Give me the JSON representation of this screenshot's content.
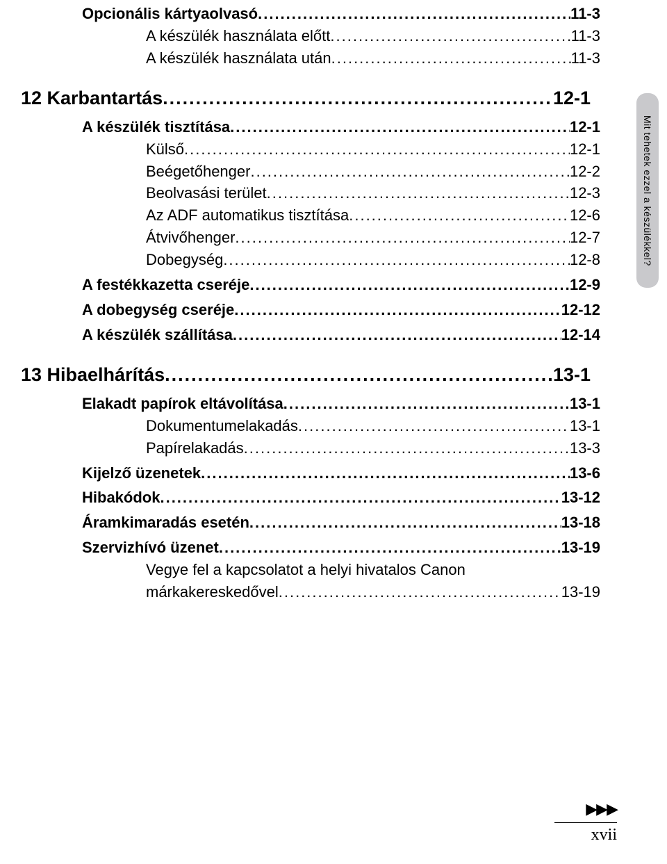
{
  "sideTab": "Mit tehetek ezzel a készülékkel?",
  "pageNumber": "xvii",
  "toc": [
    {
      "level": 2,
      "title": "Opcionális kártyaolvasó",
      "page": "11-3"
    },
    {
      "level": 3,
      "title": "A készülék használata előtt",
      "page": "11-3"
    },
    {
      "level": 3,
      "title": "A készülék használata után",
      "page": "11-3"
    },
    {
      "level": 1,
      "title": "12 Karbantartás",
      "page": "12-1"
    },
    {
      "level": 2,
      "title": "A készülék tisztítása",
      "page": "12-1"
    },
    {
      "level": 3,
      "title": "Külső",
      "page": "12-1"
    },
    {
      "level": 3,
      "title": "Beégetőhenger",
      "page": "12-2"
    },
    {
      "level": 3,
      "title": "Beolvasási terület",
      "page": "12-3"
    },
    {
      "level": 3,
      "title": "Az ADF automatikus tisztítása",
      "page": "12-6"
    },
    {
      "level": 3,
      "title": "Átvivőhenger",
      "page": "12-7"
    },
    {
      "level": 3,
      "title": "Dobegység",
      "page": "12-8"
    },
    {
      "level": 2,
      "title": "A festékkazetta cseréje",
      "page": "12-9"
    },
    {
      "level": 2,
      "title": "A dobegység cseréje",
      "page": "12-12"
    },
    {
      "level": 2,
      "title": "A készülék szállítása",
      "page": "12-14"
    },
    {
      "level": 1,
      "title": "13 Hibaelhárítás",
      "page": "13-1"
    },
    {
      "level": 2,
      "title": "Elakadt papírok eltávolítása",
      "page": "13-1"
    },
    {
      "level": 3,
      "title": "Dokumentumelakadás",
      "page": "13-1"
    },
    {
      "level": 3,
      "title": "Papírelakadás",
      "page": "13-3"
    },
    {
      "level": 2,
      "title": "Kijelző üzenetek",
      "page": "13-6"
    },
    {
      "level": 2,
      "title": "Hibakódok",
      "page": "13-12"
    },
    {
      "level": 2,
      "title": "Áramkimaradás esetén",
      "page": "13-18"
    },
    {
      "level": 2,
      "title": "Szervizhívó üzenet",
      "page": "13-19"
    },
    {
      "level": "wrap",
      "title1": "Vegye fel a kapcsolatot a helyi hivatalos Canon",
      "title2": "márkakereskedővel",
      "page": "13-19"
    }
  ]
}
